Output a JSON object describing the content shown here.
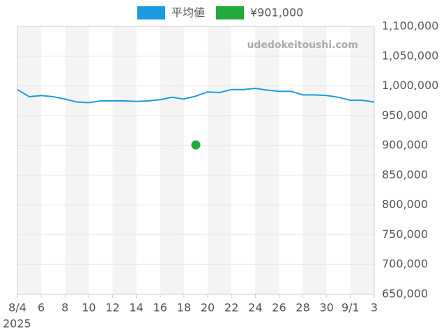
{
  "chart_data": {
    "type": "line",
    "categories": [
      "8/4",
      null,
      "6",
      null,
      "8",
      null,
      "10",
      null,
      "12",
      null,
      "14",
      null,
      "16",
      null,
      "18",
      null,
      "20",
      null,
      "22",
      null,
      "24",
      null,
      "26",
      null,
      "28",
      null,
      "30",
      null,
      "9/1",
      null,
      "3"
    ],
    "x_year": "2025",
    "watermark": "udedokeitoushi.com",
    "series": [
      {
        "name": "平均値",
        "color": "#1a9be0",
        "values": [
          994000,
          982000,
          984000,
          982000,
          978000,
          973000,
          972000,
          975000,
          975000,
          975000,
          974000,
          975000,
          977000,
          981000,
          978000,
          983000,
          990000,
          989000,
          994000,
          994000,
          996000,
          993000,
          991000,
          991000,
          985000,
          985000,
          984000,
          981000,
          976000,
          976000,
          973000
        ]
      },
      {
        "name": "¥901,000",
        "color": "#22aa3a",
        "values": [
          null,
          null,
          null,
          null,
          null,
          null,
          null,
          null,
          null,
          null,
          null,
          null,
          null,
          null,
          null,
          901000,
          null,
          null,
          null,
          null,
          null,
          null,
          null,
          null,
          null,
          null,
          null,
          null,
          null,
          null,
          null
        ]
      }
    ],
    "ylim": [
      650000,
      1100000
    ],
    "yticks": [
      {
        "value": 650000,
        "label": "650,000"
      },
      {
        "value": 700000,
        "label": "700,000"
      },
      {
        "value": 750000,
        "label": "750,000"
      },
      {
        "value": 800000,
        "label": "800,000"
      },
      {
        "value": 850000,
        "label": "850,000"
      },
      {
        "value": 900000,
        "label": "900,000"
      },
      {
        "value": 950000,
        "label": "950,000"
      },
      {
        "value": 1000000,
        "label": "1,000,000"
      },
      {
        "value": 1050000,
        "label": "1,050,000"
      },
      {
        "value": 1100000,
        "label": "1,100,000"
      }
    ],
    "grid": true
  }
}
